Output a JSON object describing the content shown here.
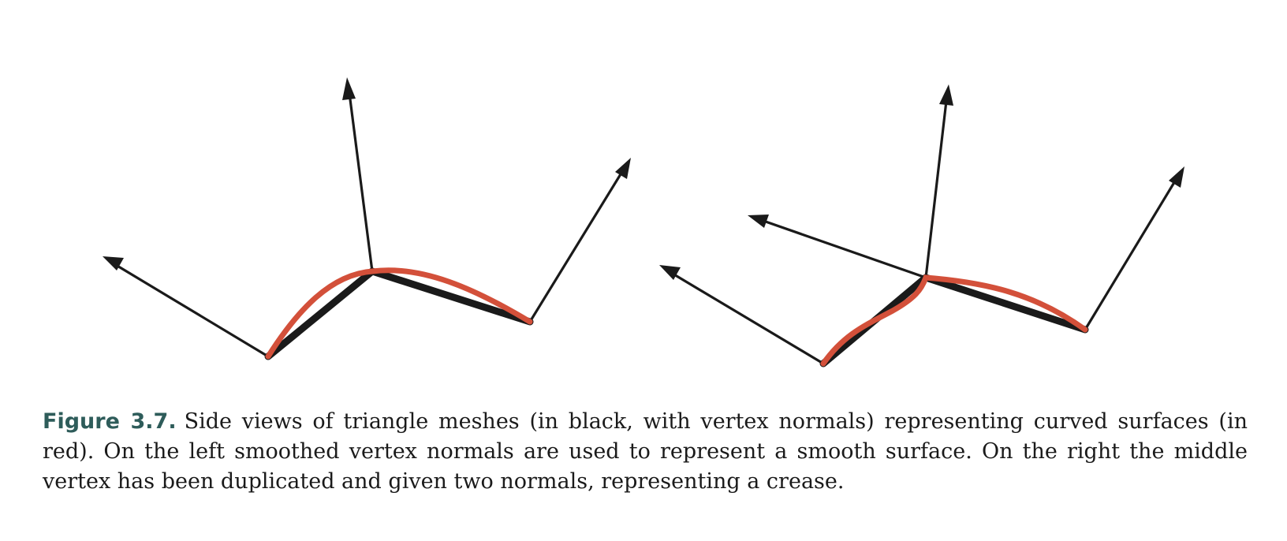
{
  "figure": {
    "label": "Figure 3.7.",
    "caption": "Side views of triangle meshes (in black, with vertex normals) representing curved surfaces (in red). On the left smoothed vertex normals are used to represent a smooth surface. On the right the middle vertex has been duplicated and given two normals, representing a crease.",
    "colors": {
      "mesh": "#1a1a1a",
      "surface": "#d3503a",
      "label": "#2e5c5a"
    },
    "panels": [
      {
        "name": "left-smooth-panel",
        "middle_vertex_normals": 1
      },
      {
        "name": "right-crease-panel",
        "middle_vertex_normals": 2
      }
    ]
  }
}
